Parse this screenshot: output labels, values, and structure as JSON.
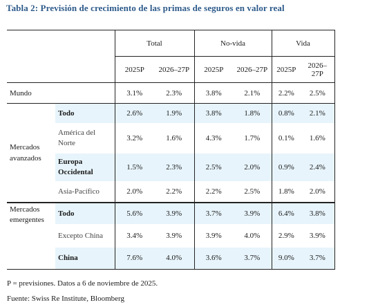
{
  "title": "Tabla 2: Previsión de crecimiento de las primas de seguros en valor real",
  "headers": {
    "groups": [
      "Total",
      "No-vida",
      "Vida"
    ],
    "cols": [
      "2025P",
      "2026–27P",
      "2025P",
      "2026–27P",
      "2025P",
      "2026–27P"
    ]
  },
  "rows": {
    "mundo": {
      "label": "Mundo",
      "values": [
        "3.1%",
        "2.3%",
        "3.8%",
        "2.1%",
        "2.2%",
        "2.5%"
      ]
    },
    "avanzados": {
      "group": "Mercados avanzados",
      "todo": {
        "label": "Todo",
        "values": [
          "2.6%",
          "1.9%",
          "3.8%",
          "1.8%",
          "0.8%",
          "2.1%"
        ]
      },
      "america": {
        "label": "América del Norte",
        "values": [
          "3.2%",
          "1.6%",
          "4.3%",
          "1.7%",
          "0.1%",
          "1.6%"
        ]
      },
      "europa": {
        "label": "Europa Occidental",
        "values": [
          "1.5%",
          "2.3%",
          "2.5%",
          "2.0%",
          "0.9%",
          "2.4%"
        ]
      },
      "asia": {
        "label": "Asia-Pacífico",
        "values": [
          "2.0%",
          "2.2%",
          "2.2%",
          "2.5%",
          "1.8%",
          "2.0%"
        ]
      }
    },
    "emergentes": {
      "group": "Mercados emergentes",
      "todo": {
        "label": "Todo",
        "values": [
          "5.6%",
          "3.9%",
          "3.7%",
          "3.9%",
          "6.4%",
          "3.8%"
        ]
      },
      "excepto": {
        "label": "Excepto China",
        "values": [
          "3.4%",
          "3.9%",
          "3.9%",
          "4.0%",
          "2.9%",
          "3.9%"
        ]
      },
      "china": {
        "label": "China",
        "values": [
          "7.6%",
          "4.0%",
          "3.6%",
          "3.7%",
          "9.0%",
          "3.7%"
        ]
      }
    }
  },
  "footnotes": {
    "p": "P = previsiones. Datos a 6 de noviembre de 2025.",
    "source": "Fuente: Swiss Re Institute, Bloomberg"
  },
  "colors": {
    "title": "#2d5a8a",
    "shade": "#e7f4fb"
  }
}
